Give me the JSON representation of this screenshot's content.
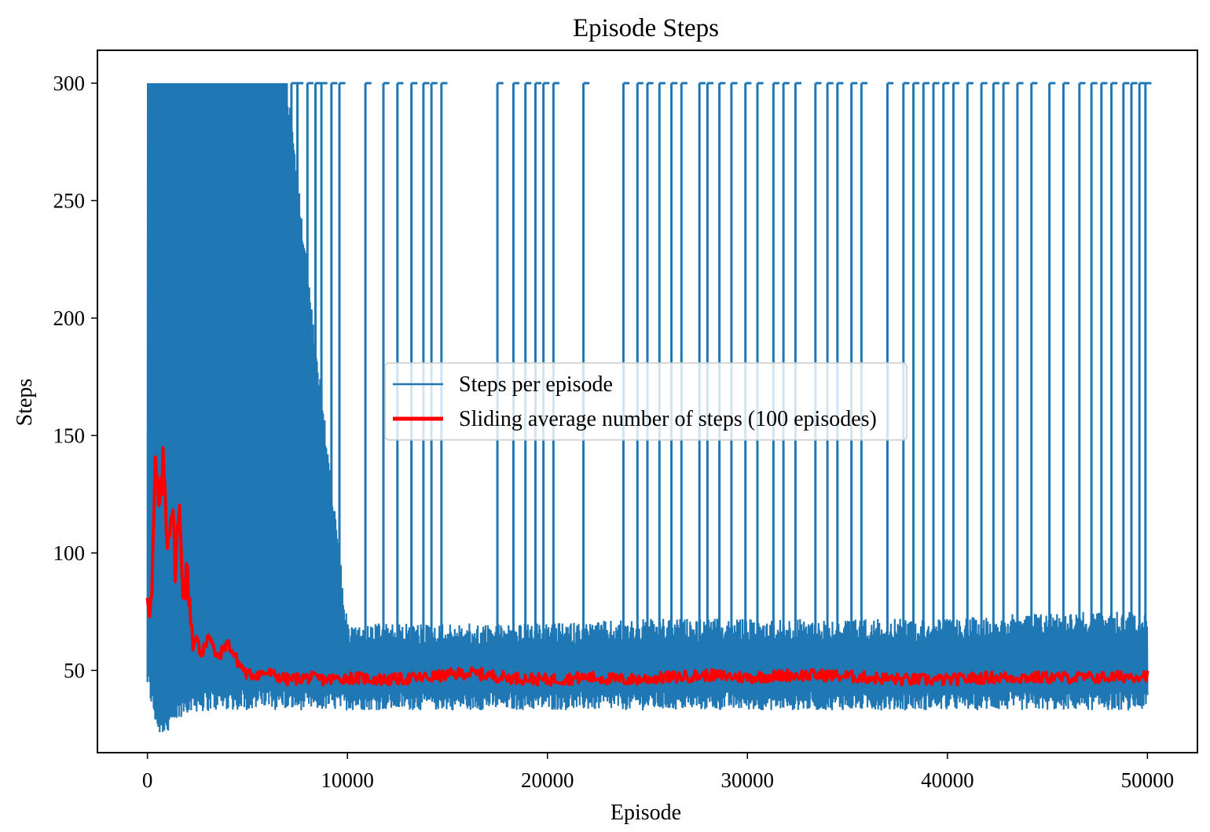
{
  "chart_data": {
    "type": "line",
    "title": "Episode Steps",
    "xlabel": "Episode",
    "ylabel": "Steps",
    "xlim": [
      -2500,
      52500
    ],
    "ylim": [
      15,
      314
    ],
    "x_ticks": [
      0,
      10000,
      20000,
      30000,
      40000,
      50000
    ],
    "y_ticks": [
      50,
      100,
      150,
      200,
      250,
      300
    ],
    "legend_position": "center",
    "grid": false,
    "series": [
      {
        "name": "Steps per episode",
        "color": "#1f77b4",
        "style": "thin-line",
        "envelope": {
          "x": [
            0,
            500,
            1000,
            2000,
            4000,
            7000,
            10000,
            15000,
            20000,
            25000,
            30000,
            35000,
            40000,
            45000,
            50000
          ],
          "min": [
            42,
            23,
            22,
            32,
            33,
            33,
            33,
            33,
            33,
            33,
            33,
            33,
            33,
            33,
            33
          ],
          "typical_max": [
            300,
            300,
            300,
            300,
            300,
            300,
            70,
            70,
            70,
            72,
            72,
            72,
            72,
            75,
            75
          ]
        },
        "spikes_to_300_at_x": [
          7200,
          7500,
          8000,
          8400,
          8700,
          9200,
          9600,
          10900,
          11800,
          12500,
          13200,
          13800,
          14200,
          14700,
          17500,
          18300,
          18900,
          19400,
          19800,
          20300,
          21800,
          23800,
          24500,
          25000,
          25600,
          26200,
          26700,
          27600,
          28000,
          28600,
          29200,
          29900,
          30500,
          31300,
          31800,
          32400,
          33400,
          34000,
          34500,
          35200,
          35700,
          37000,
          37800,
          38300,
          38800,
          39300,
          39800,
          40300,
          41000,
          41700,
          42300,
          42800,
          43500,
          44200,
          45100,
          45800,
          46600,
          47200,
          47700,
          48200,
          48800,
          49200,
          49600,
          49900
        ]
      },
      {
        "name": "Sliding average number of steps (100 episodes)",
        "color": "#ff0000",
        "style": "thick-line",
        "x": [
          0,
          200,
          400,
          600,
          800,
          1000,
          1200,
          1400,
          1600,
          1800,
          2000,
          2300,
          2600,
          3000,
          3500,
          4000,
          4500,
          5000,
          6000,
          7000,
          8000,
          9000,
          10000,
          12000,
          14000,
          16000,
          18000,
          20000,
          22000,
          24000,
          26000,
          28000,
          30000,
          32000,
          34000,
          36000,
          38000,
          40000,
          42000,
          44000,
          46000,
          48000,
          50000
        ],
        "y": [
          85,
          75,
          138,
          115,
          140,
          105,
          122,
          95,
          118,
          85,
          90,
          62,
          58,
          66,
          55,
          62,
          54,
          48,
          49,
          46,
          47,
          46,
          47,
          46,
          47,
          49,
          47,
          46,
          47,
          46,
          47,
          48,
          47,
          48,
          48,
          47,
          46,
          46,
          47,
          47,
          47,
          47,
          48
        ]
      }
    ]
  }
}
